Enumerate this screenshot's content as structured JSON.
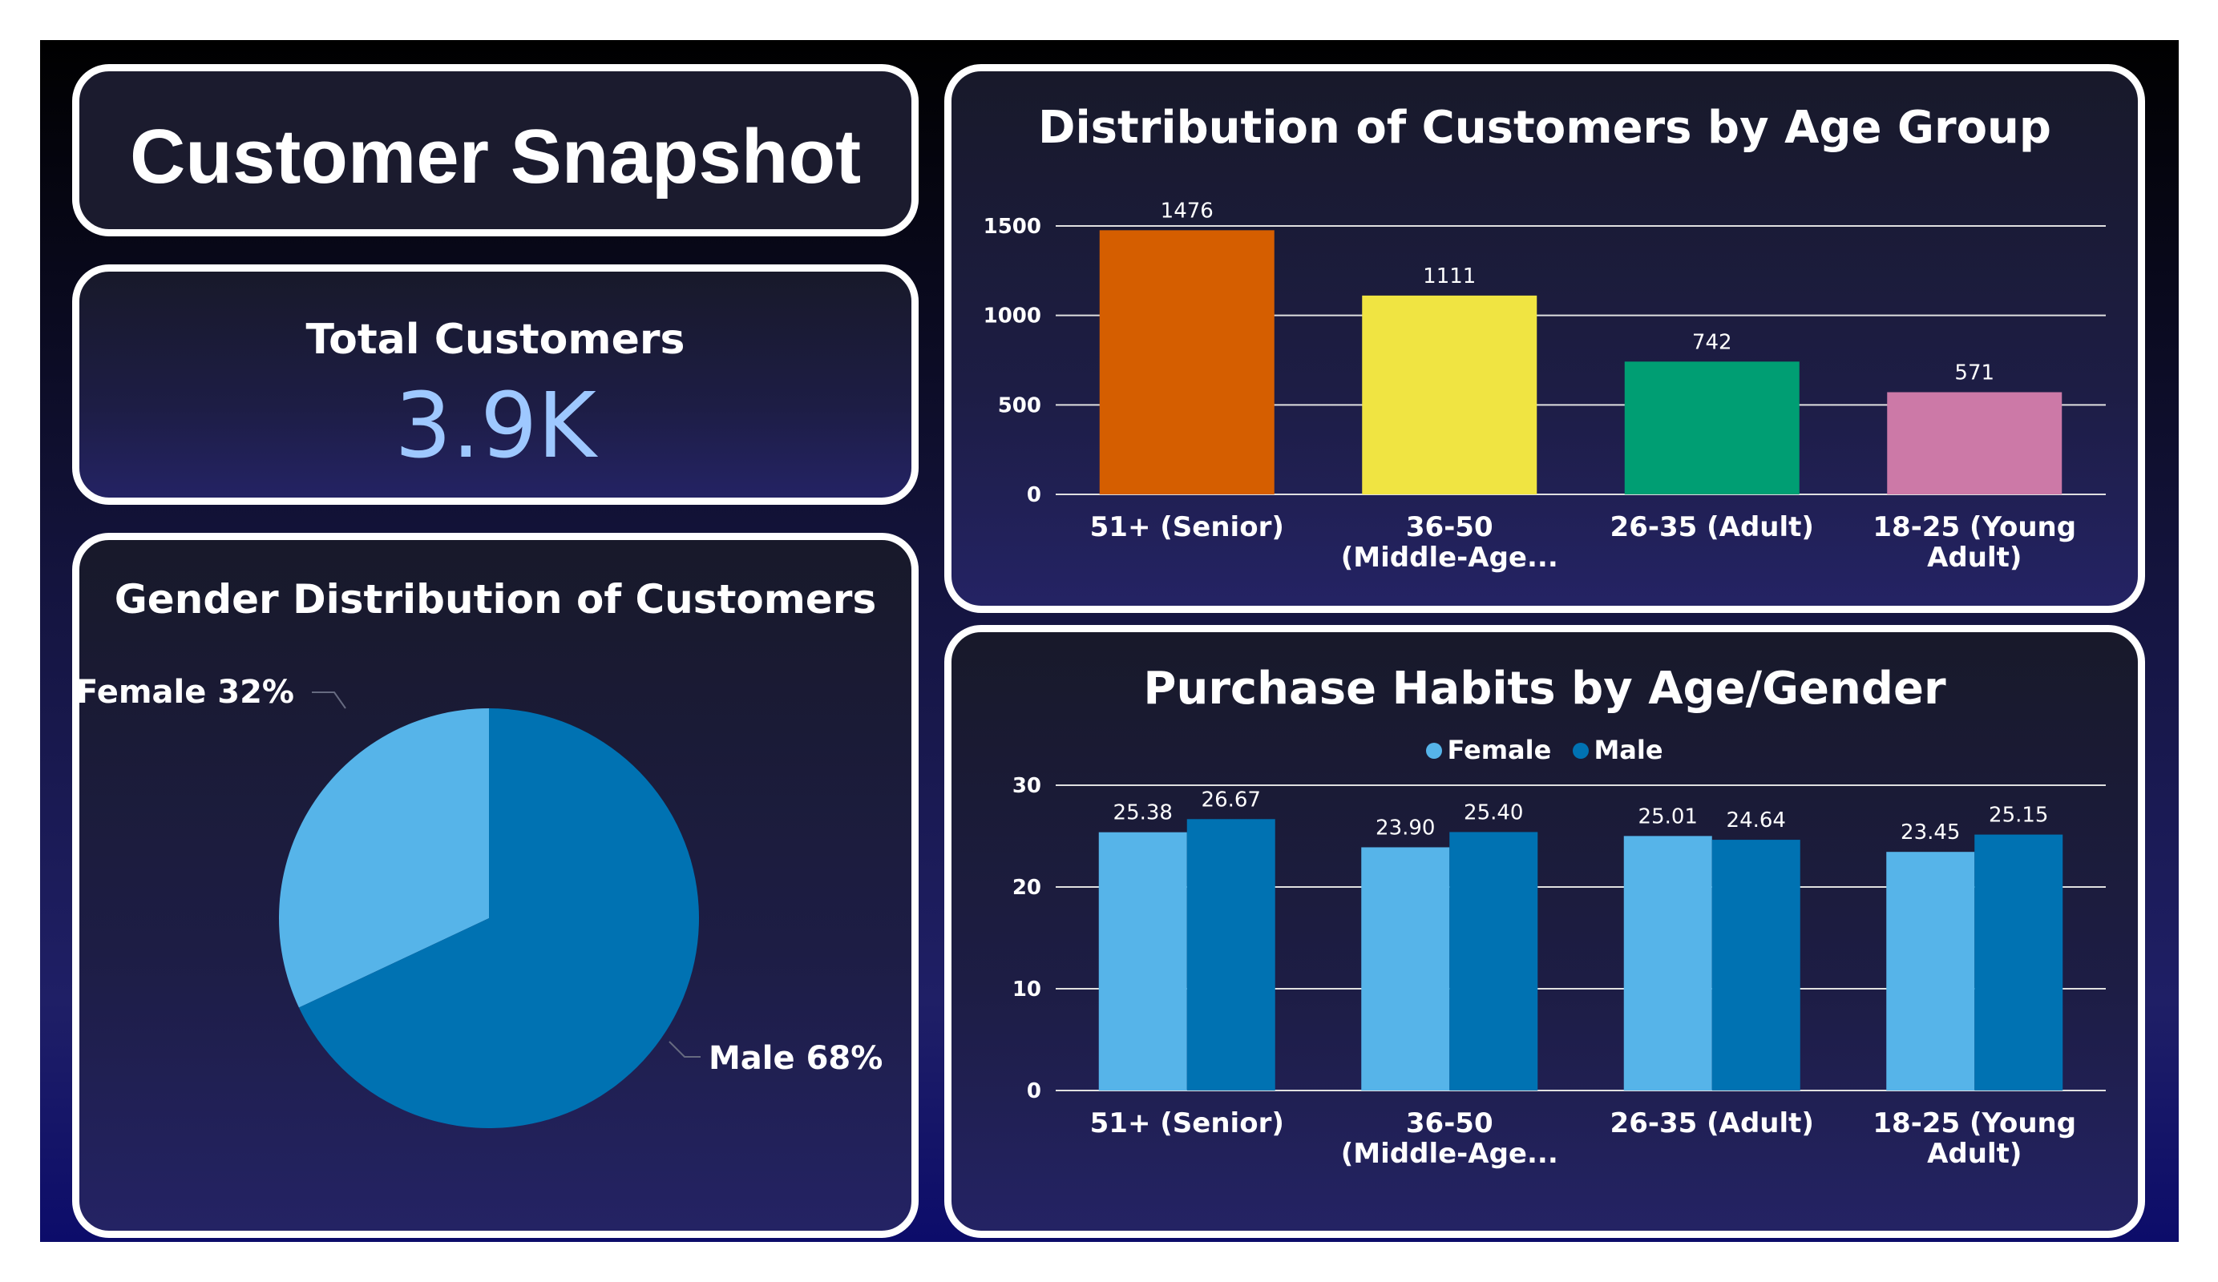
{
  "colors": {
    "female": "#56b4e9",
    "male": "#0072b2",
    "age_bars": [
      "#d55e00",
      "#f0e442",
      "#009e73",
      "#cc79a7"
    ]
  },
  "header": {
    "title": "Customer Snapshot"
  },
  "kpi": {
    "label": "Total Customers",
    "value": "3.9K"
  },
  "gender": {
    "title": "Gender Distribution of Customers",
    "slices": [
      {
        "name": "Female",
        "label": "Female 32%",
        "value": 32
      },
      {
        "name": "Male",
        "label": "Male 68%",
        "value": 68
      }
    ]
  },
  "age": {
    "title": "Distribution of Customers by Age Group",
    "category_lines": [
      [
        "51+ (Senior)"
      ],
      [
        "36-50",
        "(Middle-Age..."
      ],
      [
        "26-35 (Adult)"
      ],
      [
        "18-25 (Young",
        "Adult)"
      ]
    ],
    "ticks": [
      "0",
      "500",
      "1000",
      "1500"
    ]
  },
  "purchase": {
    "title": "Purchase Habits by Age/Gender",
    "legend": [
      "Female",
      "Male"
    ],
    "category_lines": [
      [
        "51+ (Senior)"
      ],
      [
        "36-50",
        "(Middle-Age..."
      ],
      [
        "26-35 (Adult)"
      ],
      [
        "18-25 (Young",
        "Adult)"
      ]
    ],
    "ticks": [
      "0",
      "10",
      "20",
      "30"
    ],
    "labels": {
      "female": [
        "25.38",
        "23.90",
        "25.01",
        "23.45"
      ],
      "male": [
        "26.67",
        "25.40",
        "24.64",
        "25.15"
      ]
    }
  },
  "chart_data": [
    {
      "type": "bar",
      "title": "Distribution of Customers by Age Group",
      "categories": [
        "51+ (Senior)",
        "36-50 (Middle-Age...",
        "26-35 (Adult)",
        "18-25 (Young Adult)"
      ],
      "values": [
        1476,
        1111,
        742,
        571
      ],
      "ylim": [
        0,
        1500
      ],
      "grid": true
    },
    {
      "type": "pie",
      "title": "Gender Distribution of Customers",
      "categories": [
        "Female",
        "Male"
      ],
      "values": [
        32,
        68
      ]
    },
    {
      "type": "bar",
      "title": "Purchase Habits by Age/Gender",
      "categories": [
        "51+ (Senior)",
        "36-50 (Middle-Age...",
        "26-35 (Adult)",
        "18-25 (Young Adult)"
      ],
      "series": [
        {
          "name": "Female",
          "values": [
            25.38,
            23.9,
            25.01,
            23.45
          ]
        },
        {
          "name": "Male",
          "values": [
            26.67,
            25.4,
            24.64,
            25.15
          ]
        }
      ],
      "ylim": [
        0,
        30
      ],
      "legend": "top",
      "grid": true
    }
  ]
}
